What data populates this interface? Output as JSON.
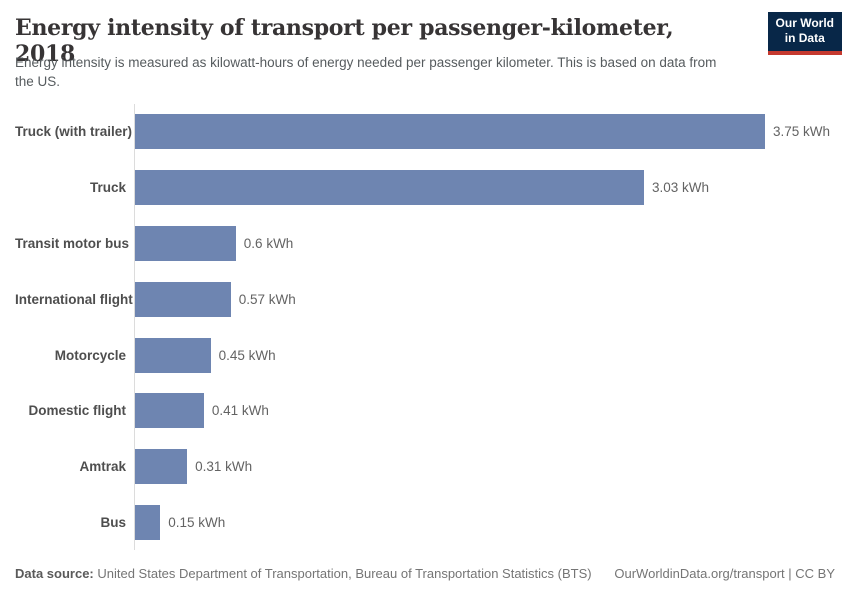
{
  "header": {
    "title": "Energy intensity of transport per passenger-kilometer, 2018",
    "subtitle": "Energy intensity is measured as kilowatt-hours of energy needed per passenger kilometer. This is based on data from the US.",
    "logo": {
      "line1": "Our World",
      "line2": "in Data",
      "bg_color": "#082748",
      "accent_color": "#c5392f"
    }
  },
  "chart_data": {
    "type": "bar",
    "orientation": "horizontal",
    "title": "Energy intensity of transport per passenger-kilometer, 2018",
    "categories": [
      "Truck (with trailer)",
      "Truck",
      "Transit motor bus",
      "International flight",
      "Motorcycle",
      "Domestic flight",
      "Amtrak",
      "Bus"
    ],
    "values": [
      3.75,
      3.03,
      0.6,
      0.57,
      0.45,
      0.41,
      0.31,
      0.15
    ],
    "value_labels": [
      "3.75 kWh",
      "3.03 kWh",
      "0.6 kWh",
      "0.57 kWh",
      "0.45 kWh",
      "0.41 kWh",
      "0.31 kWh",
      "0.15 kWh"
    ],
    "unit": "kWh",
    "xlim": [
      0,
      3.75
    ],
    "bar_color": "#6e85b1",
    "axis_line_color": "#dcdcdc",
    "grid": false,
    "legend": false
  },
  "footer": {
    "source_label": "Data source:",
    "source_text": " United States Department of Transportation, Bureau of Transportation Statistics (BTS)",
    "link_text": "OurWorldinData.org/transport | CC BY"
  }
}
